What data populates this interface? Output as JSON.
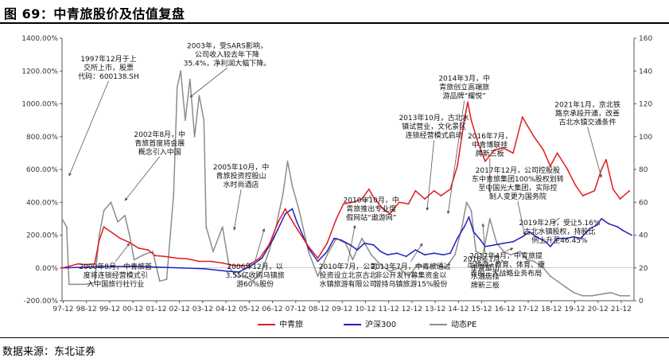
{
  "figure": {
    "title": "图 69：中青旅股价及估值复盘",
    "source": "数据来源：东北证券"
  },
  "colors": {
    "zhongqinglv": "#e41a1c",
    "hs300": "#1f1fbf",
    "pe": "#8c8c8c",
    "arrow": "#555555"
  },
  "chart_data": {
    "type": "line",
    "x_ticks": [
      "97-12",
      "98-12",
      "99-12",
      "00-12",
      "01-12",
      "02-12",
      "03-12",
      "04-12",
      "05-12",
      "06-12",
      "07-12",
      "08-12",
      "09-12",
      "10-12",
      "11-12",
      "12-12",
      "13-12",
      "14-12",
      "15-12",
      "16-12",
      "17-12",
      "18-12",
      "19-12",
      "20-12",
      "21-12"
    ],
    "x_range": [
      1997.9,
      2022.5
    ],
    "y_left": {
      "range": [
        -200,
        1400
      ],
      "ticks": [
        "-200.00%",
        "0.00%",
        "200.00%",
        "400.00%",
        "600.00%",
        "800.00%",
        "1000.00%",
        "1200.00%",
        "1400.00%"
      ]
    },
    "y_right": {
      "range": [
        0,
        160
      ],
      "ticks": [
        "0",
        "20",
        "40",
        "60",
        "80",
        "100",
        "120",
        "140",
        "160"
      ]
    },
    "series": [
      {
        "name": "中青旅",
        "axis": "left",
        "color": "#e41a1c",
        "points": [
          [
            1997.9,
            0
          ],
          [
            1998.2,
            10
          ],
          [
            1998.6,
            25
          ],
          [
            1998.9,
            20
          ],
          [
            1999.3,
            25
          ],
          [
            1999.5,
            170
          ],
          [
            1999.7,
            250
          ],
          [
            2000.0,
            220
          ],
          [
            2000.4,
            180
          ],
          [
            2000.8,
            155
          ],
          [
            2001.2,
            120
          ],
          [
            2001.6,
            110
          ],
          [
            2001.9,
            75
          ],
          [
            2002.3,
            70
          ],
          [
            2002.8,
            60
          ],
          [
            2003.3,
            55
          ],
          [
            2003.8,
            40
          ],
          [
            2004.3,
            40
          ],
          [
            2004.8,
            30
          ],
          [
            2005.3,
            15
          ],
          [
            2005.9,
            15
          ],
          [
            2006.4,
            60
          ],
          [
            2006.8,
            140
          ],
          [
            2007.2,
            280
          ],
          [
            2007.5,
            360
          ],
          [
            2007.7,
            310
          ],
          [
            2008.0,
            240
          ],
          [
            2008.5,
            130
          ],
          [
            2008.9,
            60
          ],
          [
            2009.3,
            150
          ],
          [
            2009.7,
            300
          ],
          [
            2010.0,
            390
          ],
          [
            2010.4,
            400
          ],
          [
            2010.8,
            420
          ],
          [
            2011.1,
            480
          ],
          [
            2011.3,
            430
          ],
          [
            2011.7,
            360
          ],
          [
            2012.0,
            330
          ],
          [
            2012.4,
            400
          ],
          [
            2012.8,
            390
          ],
          [
            2013.1,
            470
          ],
          [
            2013.5,
            420
          ],
          [
            2013.9,
            470
          ],
          [
            2014.2,
            440
          ],
          [
            2014.6,
            480
          ],
          [
            2014.9,
            620
          ],
          [
            2015.2,
            900
          ],
          [
            2015.35,
            1010
          ],
          [
            2015.5,
            900
          ],
          [
            2015.8,
            760
          ],
          [
            2016.1,
            650
          ],
          [
            2016.5,
            720
          ],
          [
            2016.9,
            730
          ],
          [
            2017.3,
            700
          ],
          [
            2017.7,
            920
          ],
          [
            2017.9,
            870
          ],
          [
            2018.2,
            800
          ],
          [
            2018.6,
            720
          ],
          [
            2018.9,
            620
          ],
          [
            2019.2,
            700
          ],
          [
            2019.6,
            610
          ],
          [
            2020.0,
            500
          ],
          [
            2020.3,
            440
          ],
          [
            2020.8,
            470
          ],
          [
            2021.1,
            600
          ],
          [
            2021.3,
            660
          ],
          [
            2021.6,
            480
          ],
          [
            2021.9,
            420
          ],
          [
            2022.3,
            470
          ]
        ]
      },
      {
        "name": "沪深300",
        "axis": "left",
        "color": "#1f1fbf",
        "points": [
          [
            1997.9,
            0
          ],
          [
            1999.0,
            5
          ],
          [
            2000.0,
            10
          ],
          [
            2001.0,
            10
          ],
          [
            2002.0,
            5
          ],
          [
            2003.0,
            0
          ],
          [
            2004.0,
            -5
          ],
          [
            2005.0,
            -20
          ],
          [
            2005.5,
            -25
          ],
          [
            2006.0,
            10
          ],
          [
            2006.5,
            60
          ],
          [
            2007.0,
            180
          ],
          [
            2007.5,
            330
          ],
          [
            2007.8,
            360
          ],
          [
            2008.0,
            280
          ],
          [
            2008.5,
            120
          ],
          [
            2008.9,
            40
          ],
          [
            2009.3,
            100
          ],
          [
            2009.6,
            180
          ],
          [
            2009.9,
            170
          ],
          [
            2010.3,
            140
          ],
          [
            2010.6,
            110
          ],
          [
            2010.9,
            150
          ],
          [
            2011.3,
            140
          ],
          [
            2011.6,
            100
          ],
          [
            2011.9,
            80
          ],
          [
            2012.3,
            90
          ],
          [
            2012.7,
            70
          ],
          [
            2012.9,
            90
          ],
          [
            2013.1,
            110
          ],
          [
            2013.5,
            80
          ],
          [
            2013.9,
            90
          ],
          [
            2014.3,
            80
          ],
          [
            2014.6,
            90
          ],
          [
            2014.9,
            180
          ],
          [
            2015.2,
            250
          ],
          [
            2015.4,
            310
          ],
          [
            2015.6,
            220
          ],
          [
            2015.9,
            170
          ],
          [
            2016.1,
            130
          ],
          [
            2016.5,
            140
          ],
          [
            2016.9,
            150
          ],
          [
            2017.3,
            160
          ],
          [
            2017.7,
            190
          ],
          [
            2018.0,
            220
          ],
          [
            2018.3,
            190
          ],
          [
            2018.7,
            160
          ],
          [
            2018.9,
            130
          ],
          [
            2019.2,
            180
          ],
          [
            2019.6,
            180
          ],
          [
            2019.9,
            190
          ],
          [
            2020.2,
            180
          ],
          [
            2020.6,
            240
          ],
          [
            2020.9,
            260
          ],
          [
            2021.1,
            300
          ],
          [
            2021.4,
            270
          ],
          [
            2021.8,
            250
          ],
          [
            2022.0,
            230
          ],
          [
            2022.4,
            200
          ]
        ]
      },
      {
        "name": "动态PE",
        "axis": "right",
        "color": "#8c8c8c",
        "points": [
          [
            1997.9,
            50
          ],
          [
            1998.1,
            45
          ],
          [
            1998.2,
            10
          ],
          [
            1998.5,
            10
          ],
          [
            1998.9,
            10
          ],
          [
            1999.3,
            11
          ],
          [
            1999.5,
            40
          ],
          [
            1999.7,
            55
          ],
          [
            2000.0,
            60
          ],
          [
            2000.3,
            48
          ],
          [
            2000.6,
            52
          ],
          [
            2000.8,
            40
          ],
          [
            2001.0,
            25
          ],
          [
            2001.4,
            28
          ],
          [
            2001.8,
            30
          ],
          [
            2002.1,
            12
          ],
          [
            2002.4,
            13
          ],
          [
            2002.7,
            65
          ],
          [
            2002.85,
            130
          ],
          [
            2003.0,
            140
          ],
          [
            2003.2,
            110
          ],
          [
            2003.4,
            135
          ],
          [
            2003.6,
            100
          ],
          [
            2003.8,
            125
          ],
          [
            2004.0,
            110
          ],
          [
            2004.1,
            45
          ],
          [
            2004.4,
            30
          ],
          [
            2004.8,
            45
          ],
          [
            2005.1,
            20
          ],
          [
            2005.4,
            15
          ],
          [
            2005.8,
            15
          ],
          [
            2006.1,
            12
          ],
          [
            2006.5,
            18
          ],
          [
            2006.8,
            30
          ],
          [
            2007.1,
            45
          ],
          [
            2007.4,
            65
          ],
          [
            2007.6,
            85
          ],
          [
            2007.8,
            70
          ],
          [
            2008.1,
            55
          ],
          [
            2008.5,
            30
          ],
          [
            2008.9,
            15
          ],
          [
            2009.3,
            28
          ],
          [
            2009.7,
            38
          ],
          [
            2010.1,
            35
          ],
          [
            2010.4,
            25
          ],
          [
            2010.8,
            38
          ],
          [
            2011.2,
            28
          ],
          [
            2011.6,
            22
          ],
          [
            2012.0,
            18
          ],
          [
            2012.4,
            20
          ],
          [
            2012.8,
            15
          ],
          [
            2013.2,
            22
          ],
          [
            2013.6,
            20
          ],
          [
            2014.0,
            22
          ],
          [
            2014.4,
            20
          ],
          [
            2014.8,
            28
          ],
          [
            2015.1,
            45
          ],
          [
            2015.3,
            60
          ],
          [
            2015.5,
            55
          ],
          [
            2015.7,
            30
          ],
          [
            2016.0,
            28
          ],
          [
            2016.3,
            50
          ],
          [
            2016.6,
            35
          ],
          [
            2016.9,
            30
          ],
          [
            2017.2,
            28
          ],
          [
            2017.6,
            30
          ],
          [
            2017.9,
            25
          ],
          [
            2018.2,
            24
          ],
          [
            2018.6,
            20
          ],
          [
            2018.9,
            15
          ],
          [
            2019.2,
            12
          ],
          [
            2019.6,
            8
          ],
          [
            2019.9,
            5
          ],
          [
            2020.3,
            3
          ],
          [
            2020.7,
            3
          ],
          [
            2021.1,
            4
          ],
          [
            2021.5,
            5
          ],
          [
            2021.9,
            3
          ],
          [
            2022.3,
            3
          ]
        ]
      }
    ],
    "legend": [
      "中青旅",
      "沪深300",
      "动态PE"
    ],
    "legend_position": "bottom-center",
    "grid": false
  },
  "annotations": [
    {
      "lines": [
        "1997年12月于上",
        "交所上市，股票",
        "代码：600138.SH"
      ],
      "tx": 1999.9,
      "ty": 1260,
      "ax": 1998.2,
      "ay": 560
    },
    {
      "lines": [
        "2002年8月，中",
        "青旅首度将会展",
        "概念引入中国"
      ],
      "tx": 2002.1,
      "ty": 800,
      "ax": 2000.6,
      "ay": 410
    },
    {
      "lines": [
        "2003年，受SARS影响，",
        "公司收入较去年下降",
        "35.4%，净利润大幅下降。"
      ],
      "tx": 2005.0,
      "ty": 1340,
      "ax": 2003.4,
      "ay": 1040
    },
    {
      "lines": [
        "2005年10月，中",
        "青旅投资控股山",
        "水时尚酒店"
      ],
      "tx": 2005.6,
      "ty": 600,
      "ax": 2005.3,
      "ay": 230
    },
    {
      "lines": [
        "2000年8月，中青旅首",
        "度将连锁经营模式引",
        "入中国旅行社行业"
      ],
      "tx": 2000.2,
      "ty": -5,
      "ax": 2000.8,
      "ay": 150
    },
    {
      "lines": [
        "2006年12月，以",
        "3.55亿收购乌镇旅",
        "游60%股份"
      ],
      "tx": 2006.2,
      "ty": -5,
      "ax": 2006.6,
      "ay": 240
    },
    {
      "lines": [
        "2010年7月，公司",
        "投资设立北京古北",
        "水镇旅游有限公司"
      ],
      "tx": 2010.2,
      "ty": -5,
      "ax": 2010.5,
      "ay": 260
    },
    {
      "lines": [
        "2013年10月，古北水",
        "镇试营业，文化景区",
        "连锁经营模式启动"
      ],
      "tx": 2013.9,
      "ty": 900,
      "ax": 2013.6,
      "ay": 350
    },
    {
      "lines": [
        "2010年10月，中",
        "青旅推出专业度",
        "假网站“遨游网”"
      ],
      "tx": 2011.2,
      "ty": 400,
      "ax": 2010.9,
      "ay": 400
    },
    {
      "lines": [
        "2014年3月，中",
        "青旅创立高端旅",
        "游品牌“耀悦”"
      ],
      "tx": 2015.2,
      "ty": 1140,
      "ax": 2014.5,
      "ay": 330
    },
    {
      "lines": [
        "2013年7月，中青旅通过",
        "非公开发行募集资金以",
        "增持乌镇旅游15%股份"
      ],
      "tx": 2012.9,
      "ty": -5,
      "ax": 2013.4,
      "ay": 150
    },
    {
      "lines": [
        "2016年7月，",
        "中青博联挂",
        "牌新三板"
      ],
      "tx": 2016.3,
      "ty": 790,
      "ax": 2016.3,
      "ay": 460
    },
    {
      "lines": [
        "2016年1月，",
        "中青旅山",
        "水酒店挂",
        "牌新三板"
      ],
      "tx": 2016.1,
      "ty": 40,
      "ax": 2016.0,
      "ay": 270
    },
    {
      "lines": [
        "2017年12月，公司控股股",
        "东中青旅集团100%股权划转",
        "至中国光大集团，实际控",
        "制人变更为国务院"
      ],
      "tx": 2017.5,
      "ty": 580,
      "ax": 2017.8,
      "ay": 200
    },
    {
      "lines": [
        "2017年4月，中青旅提",
        "出旅游+教育、体育、康",
        "养的三大战略业务布局"
      ],
      "tx": 2017.0,
      "ty": 60,
      "ax": 2017.3,
      "ay": 120
    },
    {
      "lines": [
        "2019年2月，受让5.16%",
        "古北水镇股权，持股比",
        "例上升至46.45%"
      ],
      "tx": 2019.3,
      "ty": 260,
      "ax": 2019.0,
      "ay": 270
    },
    {
      "lines": [
        "2021年1月，京北铁",
        "路京承段开通，改善",
        "古北水镇交通条件"
      ],
      "tx": 2020.5,
      "ty": 980,
      "ax": 2021.1,
      "ay": 550
    }
  ]
}
